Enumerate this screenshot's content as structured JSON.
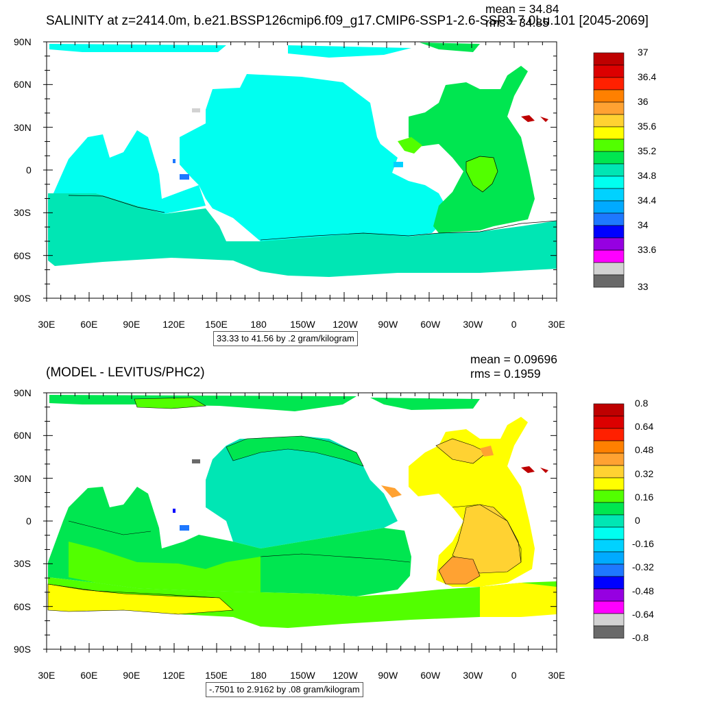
{
  "panels": [
    {
      "title": "SALINITY at z=2414.0m, b.e21.BSSP126cmip6.f09_g17.CMIP6-SSP1-2.6-SSP3-7.0Lu.101 [2045-2069]",
      "mean_label": "mean = 34.84",
      "rms_label": "rms = 34.85",
      "units_label": "33.33 to 41.56 by .2 gram/kilogram",
      "lat_labels": [
        "90N",
        "60N",
        "30N",
        "0",
        "30S",
        "60S",
        "90S"
      ],
      "lon_labels": [
        "30E",
        "60E",
        "90E",
        "120E",
        "150E",
        "180",
        "150W",
        "120W",
        "90W",
        "60W",
        "30W",
        "0",
        "30E"
      ],
      "colorbar_labels": [
        "37",
        "36.4",
        "36",
        "35.6",
        "35.2",
        "34.8",
        "34.4",
        "34",
        "33.6",
        "33"
      ],
      "colorbar_colors": [
        "#be0000",
        "#dc0000",
        "#ff2000",
        "#ff8000",
        "#ffa232",
        "#ffd232",
        "#ffff00",
        "#52ff00",
        "#00e650",
        "#00e6b4",
        "#00fff0",
        "#00d2ff",
        "#00aaff",
        "#1e78ff",
        "#0000ff",
        "#9600e1",
        "#ff00ff",
        "#d2d2d2",
        "#696969"
      ],
      "map_colors": {
        "ocean_main": "#00fff0",
        "southern": "#00e6b4",
        "atlantic": "#00e650",
        "atlantic_core": "#52ff00"
      }
    },
    {
      "title": "(MODEL - LEVITUS/PHC2)",
      "mean_label": "mean = 0.09696",
      "rms_label": "rms = 0.1959",
      "units_label": "-.7501 to 2.9162 by .08 gram/kilogram",
      "lat_labels": [
        "90N",
        "60N",
        "30N",
        "0",
        "30S",
        "60S",
        "90S"
      ],
      "lon_labels": [
        "30E",
        "60E",
        "90E",
        "120E",
        "150E",
        "180",
        "150W",
        "120W",
        "90W",
        "60W",
        "30W",
        "0",
        "30E"
      ],
      "colorbar_labels": [
        "0.8",
        "0.64",
        "0.48",
        "0.32",
        "0.16",
        "0",
        "-0.16",
        "-0.32",
        "-0.48",
        "-0.64",
        "-0.8"
      ],
      "colorbar_colors": [
        "#be0000",
        "#dc0000",
        "#ff2000",
        "#ff8000",
        "#ffa232",
        "#ffd232",
        "#ffff00",
        "#52ff00",
        "#00e650",
        "#00e6b4",
        "#00fff0",
        "#00d2ff",
        "#00aaff",
        "#1e78ff",
        "#0000ff",
        "#9600e1",
        "#ff00ff",
        "#d2d2d2",
        "#696969"
      ],
      "map_colors": {
        "pacific": "#00e6b4",
        "band": "#00e650",
        "southern": "#52ff00",
        "south_fringe": "#ffff00",
        "atlantic": "#ffff00",
        "atlantic_core": "#ffd232",
        "atlantic_warm": "#ffa232"
      }
    }
  ]
}
